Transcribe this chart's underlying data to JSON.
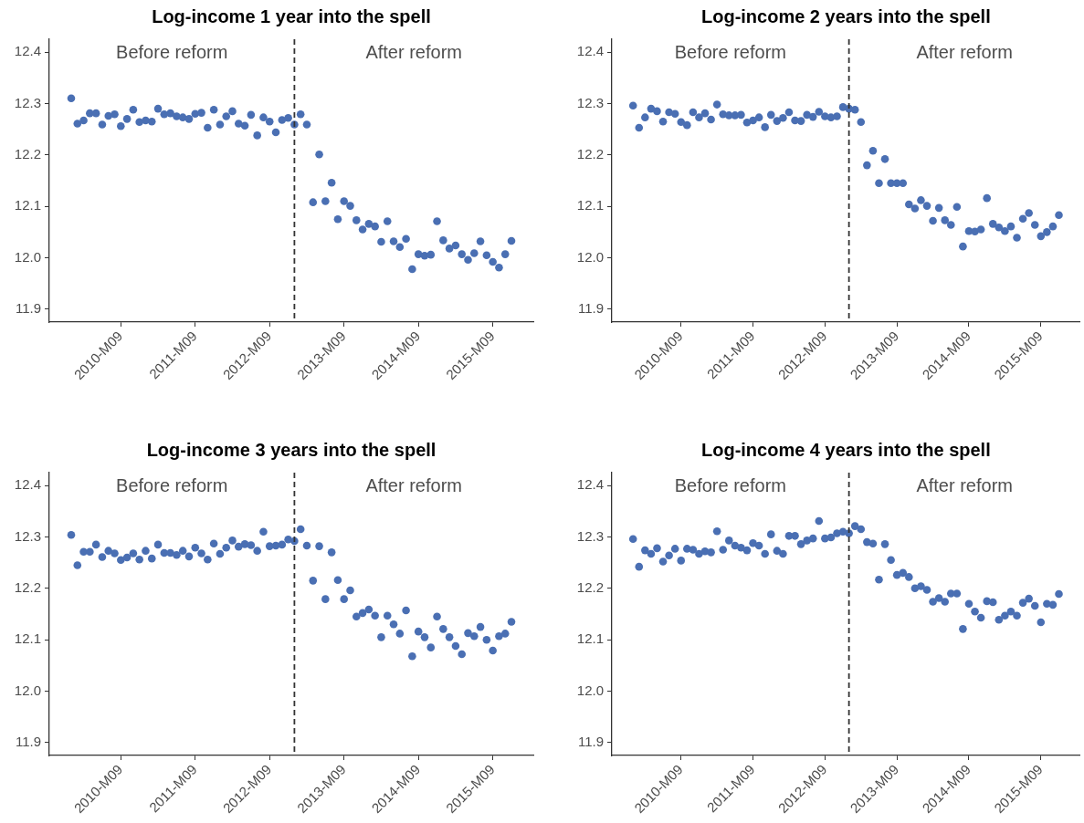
{
  "chart_data": [
    {
      "type": "scatter",
      "title": "Log-income 1 year into the spell",
      "marker": "circle",
      "legend": false,
      "grid": false,
      "x": [
        "2010-01",
        "2010-02",
        "2010-03",
        "2010-04",
        "2010-05",
        "2010-06",
        "2010-07",
        "2010-08",
        "2010-09",
        "2010-10",
        "2010-11",
        "2010-12",
        "2011-01",
        "2011-02",
        "2011-03",
        "2011-04",
        "2011-05",
        "2011-06",
        "2011-07",
        "2011-08",
        "2011-09",
        "2011-10",
        "2011-11",
        "2011-12",
        "2012-01",
        "2012-02",
        "2012-03",
        "2012-04",
        "2012-05",
        "2012-06",
        "2012-07",
        "2012-08",
        "2012-09",
        "2012-10",
        "2012-11",
        "2012-12",
        "2013-01",
        "2013-02",
        "2013-03",
        "2013-04",
        "2013-05",
        "2013-06",
        "2013-07",
        "2013-08",
        "2013-09",
        "2013-10",
        "2013-11",
        "2013-12",
        "2014-01",
        "2014-02",
        "2014-03",
        "2014-04",
        "2014-05",
        "2014-06",
        "2014-07",
        "2014-08",
        "2014-09",
        "2014-10",
        "2014-11",
        "2014-12",
        "2015-01",
        "2015-02",
        "2015-03",
        "2015-04",
        "2015-05",
        "2015-06",
        "2015-07",
        "2015-08",
        "2015-09",
        "2015-10",
        "2015-11",
        "2015-12"
      ],
      "series": [
        {
          "color": "#4a6fb3",
          "values": [
            12.31,
            12.261,
            12.267,
            12.281,
            12.281,
            12.259,
            12.276,
            12.279,
            12.256,
            12.27,
            12.288,
            12.264,
            12.267,
            12.265,
            12.29,
            12.279,
            12.281,
            12.275,
            12.273,
            12.27,
            12.28,
            12.282,
            12.253,
            12.288,
            12.259,
            12.275,
            12.285,
            12.261,
            12.257,
            12.278,
            12.238,
            12.273,
            12.265,
            12.244,
            12.268,
            12.272,
            12.259,
            12.279,
            12.259,
            12.108,
            12.201,
            12.11,
            12.146,
            12.075,
            12.11,
            12.101,
            12.073,
            12.055,
            12.066,
            12.061,
            12.031,
            12.071,
            12.032,
            12.021,
            12.037,
            11.978,
            12.007,
            12.004,
            12.006,
            12.071,
            12.034,
            12.018,
            12.024,
            12.007,
            11.996,
            12.009,
            12.032,
            12.005,
            11.992,
            11.981,
            12.007,
            12.033
          ]
        }
      ],
      "xlim": [
        "2009-09-15",
        "2016-03-17"
      ],
      "xticks": [
        {
          "value": "2010-09",
          "label": "2010-M09"
        },
        {
          "value": "2011-09",
          "label": "2011-M09"
        },
        {
          "value": "2012-09",
          "label": "2012-M09"
        },
        {
          "value": "2013-09",
          "label": "2013-M09"
        },
        {
          "value": "2014-09",
          "label": "2014-M09"
        },
        {
          "value": "2015-09",
          "label": "2015-M09"
        }
      ],
      "ylim": [
        11.875,
        12.425
      ],
      "yticks": [
        {
          "value": 11.9,
          "label": "11.9"
        },
        {
          "value": 12.0,
          "label": "12.0"
        },
        {
          "value": 12.1,
          "label": "12.1"
        },
        {
          "value": 12.2,
          "label": "12.2"
        },
        {
          "value": 12.3,
          "label": "12.3"
        },
        {
          "value": 12.4,
          "label": "12.4"
        }
      ],
      "ref_lines": [
        {
          "axis": "x",
          "value": "2013-01",
          "color": "#333333",
          "line_style": "dashed"
        }
      ],
      "annotations": [
        "Before reform",
        "After reform"
      ]
    },
    {
      "type": "scatter",
      "title": "Log-income 2 years into the spell",
      "marker": "circle",
      "legend": false,
      "grid": false,
      "x": [
        "2010-01",
        "2010-02",
        "2010-03",
        "2010-04",
        "2010-05",
        "2010-06",
        "2010-07",
        "2010-08",
        "2010-09",
        "2010-10",
        "2010-11",
        "2010-12",
        "2011-01",
        "2011-02",
        "2011-03",
        "2011-04",
        "2011-05",
        "2011-06",
        "2011-07",
        "2011-08",
        "2011-09",
        "2011-10",
        "2011-11",
        "2011-12",
        "2012-01",
        "2012-02",
        "2012-03",
        "2012-04",
        "2012-05",
        "2012-06",
        "2012-07",
        "2012-08",
        "2012-09",
        "2012-10",
        "2012-11",
        "2012-12",
        "2013-01",
        "2013-02",
        "2013-03",
        "2013-04",
        "2013-05",
        "2013-06",
        "2013-07",
        "2013-08",
        "2013-09",
        "2013-10",
        "2013-11",
        "2013-12",
        "2014-01",
        "2014-02",
        "2014-03",
        "2014-04",
        "2014-05",
        "2014-06",
        "2014-07",
        "2014-08",
        "2014-09",
        "2014-10",
        "2014-11",
        "2014-12",
        "2015-01",
        "2015-02",
        "2015-03",
        "2015-04",
        "2015-05",
        "2015-06",
        "2015-07",
        "2015-08",
        "2015-09",
        "2015-10",
        "2015-11",
        "2015-12"
      ],
      "series": [
        {
          "color": "#4a6fb3",
          "values": [
            12.296,
            12.253,
            12.273,
            12.29,
            12.285,
            12.265,
            12.283,
            12.28,
            12.264,
            12.258,
            12.283,
            12.273,
            12.281,
            12.269,
            12.298,
            12.279,
            12.277,
            12.277,
            12.278,
            12.263,
            12.267,
            12.273,
            12.254,
            12.278,
            12.266,
            12.272,
            12.283,
            12.267,
            12.266,
            12.278,
            12.274,
            12.284,
            12.275,
            12.273,
            12.275,
            12.293,
            12.29,
            12.288,
            12.264,
            12.18,
            12.208,
            12.145,
            12.192,
            12.145,
            12.145,
            12.145,
            12.104,
            12.096,
            12.112,
            12.101,
            12.072,
            12.097,
            12.073,
            12.064,
            12.099,
            12.022,
            12.052,
            12.051,
            12.055,
            12.116,
            12.066,
            12.059,
            12.052,
            12.061,
            12.039,
            12.076,
            12.087,
            12.064,
            12.042,
            12.05,
            12.061,
            12.083
          ]
        }
      ],
      "xlim": [
        "2009-09-15",
        "2016-03-17"
      ],
      "xticks": [
        {
          "value": "2010-09",
          "label": "2010-M09"
        },
        {
          "value": "2011-09",
          "label": "2011-M09"
        },
        {
          "value": "2012-09",
          "label": "2012-M09"
        },
        {
          "value": "2013-09",
          "label": "2013-M09"
        },
        {
          "value": "2014-09",
          "label": "2014-M09"
        },
        {
          "value": "2015-09",
          "label": "2015-M09"
        }
      ],
      "ylim": [
        11.875,
        12.425
      ],
      "yticks": [
        {
          "value": 11.9,
          "label": "11.9"
        },
        {
          "value": 12.0,
          "label": "12.0"
        },
        {
          "value": 12.1,
          "label": "12.1"
        },
        {
          "value": 12.2,
          "label": "12.2"
        },
        {
          "value": 12.3,
          "label": "12.3"
        },
        {
          "value": 12.4,
          "label": "12.4"
        }
      ],
      "ref_lines": [
        {
          "axis": "x",
          "value": "2013-01",
          "color": "#333333",
          "line_style": "dashed"
        }
      ],
      "annotations": [
        "Before reform",
        "After reform"
      ]
    },
    {
      "type": "scatter",
      "title": "Log-income 3 years into the spell",
      "marker": "circle",
      "legend": false,
      "grid": false,
      "x": [
        "2010-01",
        "2010-02",
        "2010-03",
        "2010-04",
        "2010-05",
        "2010-06",
        "2010-07",
        "2010-08",
        "2010-09",
        "2010-10",
        "2010-11",
        "2010-12",
        "2011-01",
        "2011-02",
        "2011-03",
        "2011-04",
        "2011-05",
        "2011-06",
        "2011-07",
        "2011-08",
        "2011-09",
        "2011-10",
        "2011-11",
        "2011-12",
        "2012-01",
        "2012-02",
        "2012-03",
        "2012-04",
        "2012-05",
        "2012-06",
        "2012-07",
        "2012-08",
        "2012-09",
        "2012-10",
        "2012-11",
        "2012-12",
        "2013-01",
        "2013-02",
        "2013-03",
        "2013-04",
        "2013-05",
        "2013-06",
        "2013-07",
        "2013-08",
        "2013-09",
        "2013-10",
        "2013-11",
        "2013-12",
        "2014-01",
        "2014-02",
        "2014-03",
        "2014-04",
        "2014-05",
        "2014-06",
        "2014-07",
        "2014-08",
        "2014-09",
        "2014-10",
        "2014-11",
        "2014-12",
        "2015-01",
        "2015-02",
        "2015-03",
        "2015-04",
        "2015-05",
        "2015-06",
        "2015-07",
        "2015-08",
        "2015-09",
        "2015-10",
        "2015-11",
        "2015-12"
      ],
      "series": [
        {
          "color": "#4a6fb3",
          "values": [
            12.304,
            12.245,
            12.271,
            12.271,
            12.285,
            12.261,
            12.273,
            12.268,
            12.255,
            12.26,
            12.268,
            12.256,
            12.273,
            12.258,
            12.285,
            12.269,
            12.269,
            12.265,
            12.273,
            12.262,
            12.279,
            12.268,
            12.256,
            12.287,
            12.267,
            12.279,
            12.293,
            12.281,
            12.286,
            12.284,
            12.273,
            12.31,
            12.282,
            12.283,
            12.285,
            12.295,
            12.292,
            12.315,
            12.283,
            12.215,
            12.282,
            12.179,
            12.27,
            12.216,
            12.179,
            12.196,
            12.145,
            12.152,
            12.159,
            12.147,
            12.105,
            12.147,
            12.13,
            12.112,
            12.157,
            12.068,
            12.116,
            12.105,
            12.085,
            12.145,
            12.121,
            12.105,
            12.088,
            12.072,
            12.113,
            12.107,
            12.125,
            12.1,
            12.079,
            12.107,
            12.112,
            12.135
          ]
        }
      ],
      "xlim": [
        "2009-09-15",
        "2016-03-17"
      ],
      "xticks": [
        {
          "value": "2010-09",
          "label": "2010-M09"
        },
        {
          "value": "2011-09",
          "label": "2011-M09"
        },
        {
          "value": "2012-09",
          "label": "2012-M09"
        },
        {
          "value": "2013-09",
          "label": "2013-M09"
        },
        {
          "value": "2014-09",
          "label": "2014-M09"
        },
        {
          "value": "2015-09",
          "label": "2015-M09"
        }
      ],
      "ylim": [
        11.875,
        12.425
      ],
      "yticks": [
        {
          "value": 11.9,
          "label": "11.9"
        },
        {
          "value": 12.0,
          "label": "12.0"
        },
        {
          "value": 12.1,
          "label": "12.1"
        },
        {
          "value": 12.2,
          "label": "12.2"
        },
        {
          "value": 12.3,
          "label": "12.3"
        },
        {
          "value": 12.4,
          "label": "12.4"
        }
      ],
      "ref_lines": [
        {
          "axis": "x",
          "value": "2013-01",
          "color": "#333333",
          "line_style": "dashed"
        }
      ],
      "annotations": [
        "Before reform",
        "After reform"
      ]
    },
    {
      "type": "scatter",
      "title": "Log-income 4 years into the spell",
      "marker": "circle",
      "legend": false,
      "grid": false,
      "x": [
        "2010-01",
        "2010-02",
        "2010-03",
        "2010-04",
        "2010-05",
        "2010-06",
        "2010-07",
        "2010-08",
        "2010-09",
        "2010-10",
        "2010-11",
        "2010-12",
        "2011-01",
        "2011-02",
        "2011-03",
        "2011-04",
        "2011-05",
        "2011-06",
        "2011-07",
        "2011-08",
        "2011-09",
        "2011-10",
        "2011-11",
        "2011-12",
        "2012-01",
        "2012-02",
        "2012-03",
        "2012-04",
        "2012-05",
        "2012-06",
        "2012-07",
        "2012-08",
        "2012-09",
        "2012-10",
        "2012-11",
        "2012-12",
        "2013-01",
        "2013-02",
        "2013-03",
        "2013-04",
        "2013-05",
        "2013-06",
        "2013-07",
        "2013-08",
        "2013-09",
        "2013-10",
        "2013-11",
        "2013-12",
        "2014-01",
        "2014-02",
        "2014-03",
        "2014-04",
        "2014-05",
        "2014-06",
        "2014-07",
        "2014-08",
        "2014-09",
        "2014-10",
        "2014-11",
        "2014-12",
        "2015-01",
        "2015-02",
        "2015-03",
        "2015-04",
        "2015-05",
        "2015-06",
        "2015-07",
        "2015-08",
        "2015-09",
        "2015-10",
        "2015-11",
        "2015-12"
      ],
      "series": [
        {
          "color": "#4a6fb3",
          "values": [
            12.296,
            12.242,
            12.274,
            12.267,
            12.278,
            12.252,
            12.264,
            12.277,
            12.254,
            12.277,
            12.275,
            12.267,
            12.272,
            12.27,
            12.311,
            12.275,
            12.293,
            12.283,
            12.279,
            12.274,
            12.288,
            12.283,
            12.267,
            12.305,
            12.273,
            12.267,
            12.302,
            12.302,
            12.286,
            12.293,
            12.297,
            12.331,
            12.297,
            12.299,
            12.307,
            12.31,
            12.307,
            12.321,
            12.315,
            12.29,
            12.287,
            12.217,
            12.286,
            12.255,
            12.226,
            12.23,
            12.222,
            12.2,
            12.204,
            12.197,
            12.174,
            12.181,
            12.174,
            12.19,
            12.19,
            12.121,
            12.17,
            12.155,
            12.143,
            12.175,
            12.173,
            12.139,
            12.147,
            12.155,
            12.147,
            12.172,
            12.18,
            12.166,
            12.134,
            12.17,
            12.168,
            12.189
          ]
        }
      ],
      "xlim": [
        "2009-09-15",
        "2016-03-17"
      ],
      "xticks": [
        {
          "value": "2010-09",
          "label": "2010-M09"
        },
        {
          "value": "2011-09",
          "label": "2011-M09"
        },
        {
          "value": "2012-09",
          "label": "2012-M09"
        },
        {
          "value": "2013-09",
          "label": "2013-M09"
        },
        {
          "value": "2014-09",
          "label": "2014-M09"
        },
        {
          "value": "2015-09",
          "label": "2015-M09"
        }
      ],
      "ylim": [
        11.875,
        12.425
      ],
      "yticks": [
        {
          "value": 11.9,
          "label": "11.9"
        },
        {
          "value": 12.0,
          "label": "12.0"
        },
        {
          "value": 12.1,
          "label": "12.1"
        },
        {
          "value": 12.2,
          "label": "12.2"
        },
        {
          "value": 12.3,
          "label": "12.3"
        },
        {
          "value": 12.4,
          "label": "12.4"
        }
      ],
      "ref_lines": [
        {
          "axis": "x",
          "value": "2013-01",
          "color": "#333333",
          "line_style": "dashed"
        }
      ],
      "annotations": [
        "Before reform",
        "After reform"
      ]
    }
  ]
}
